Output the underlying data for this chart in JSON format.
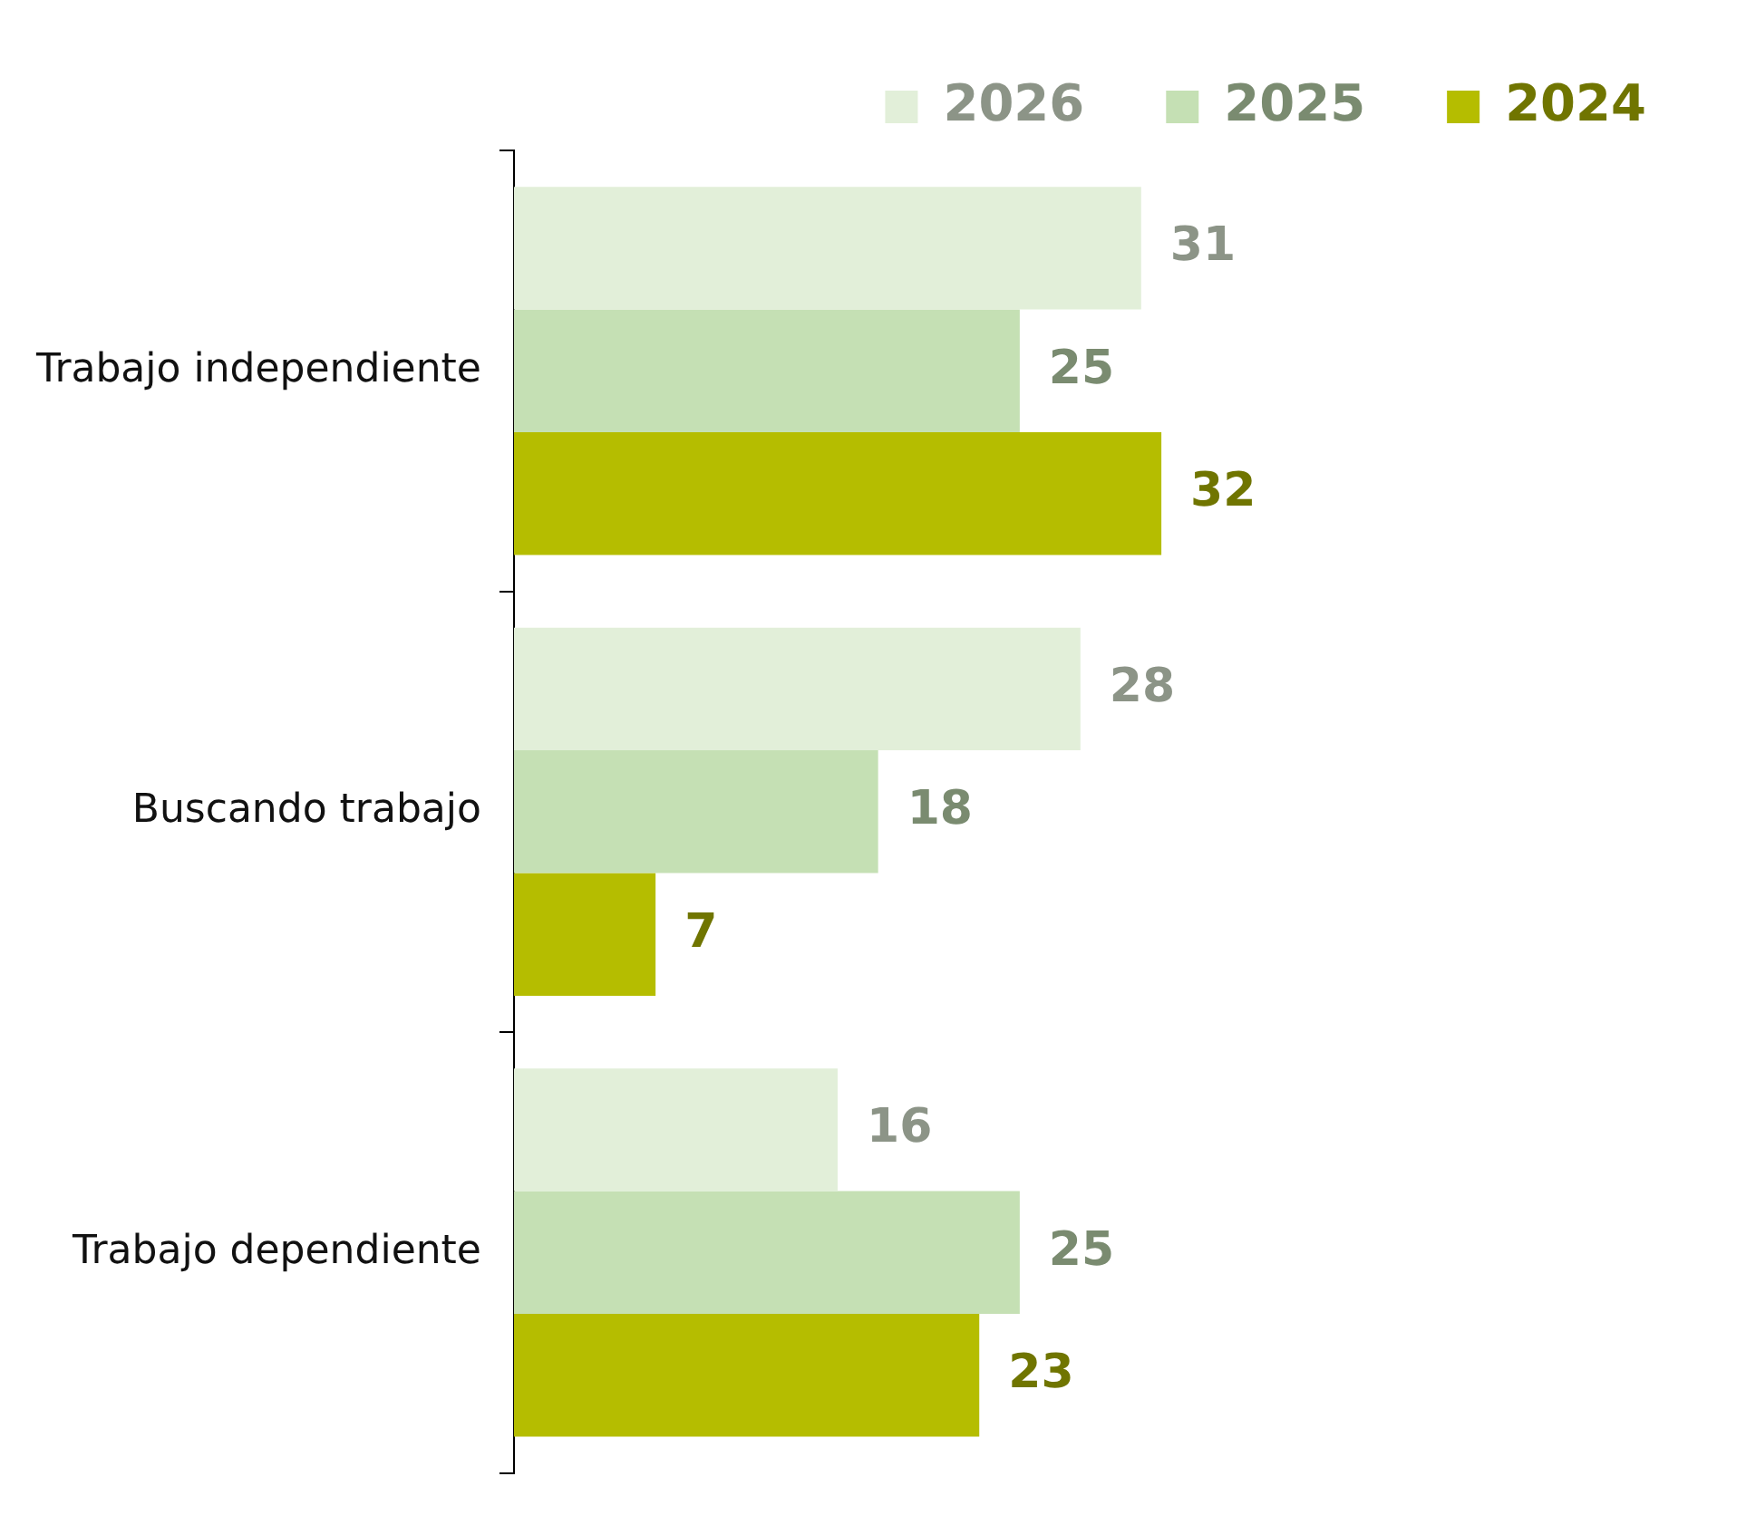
{
  "chart_data": {
    "type": "bar",
    "orientation": "horizontal",
    "categories": [
      "Trabajo independiente",
      "Buscando trabajo",
      "Trabajo dependiente"
    ],
    "series": [
      {
        "name": "2026",
        "color": "#e2efd9",
        "values": [
          31,
          28,
          16
        ]
      },
      {
        "name": "2025",
        "color": "#c5e0b4",
        "values": [
          25,
          18,
          25
        ]
      },
      {
        "name": "2024",
        "color": "#b5bd00",
        "values": [
          32,
          7,
          23
        ]
      }
    ],
    "data_labels": true,
    "legend": "top right",
    "tick_labels": "y"
  }
}
